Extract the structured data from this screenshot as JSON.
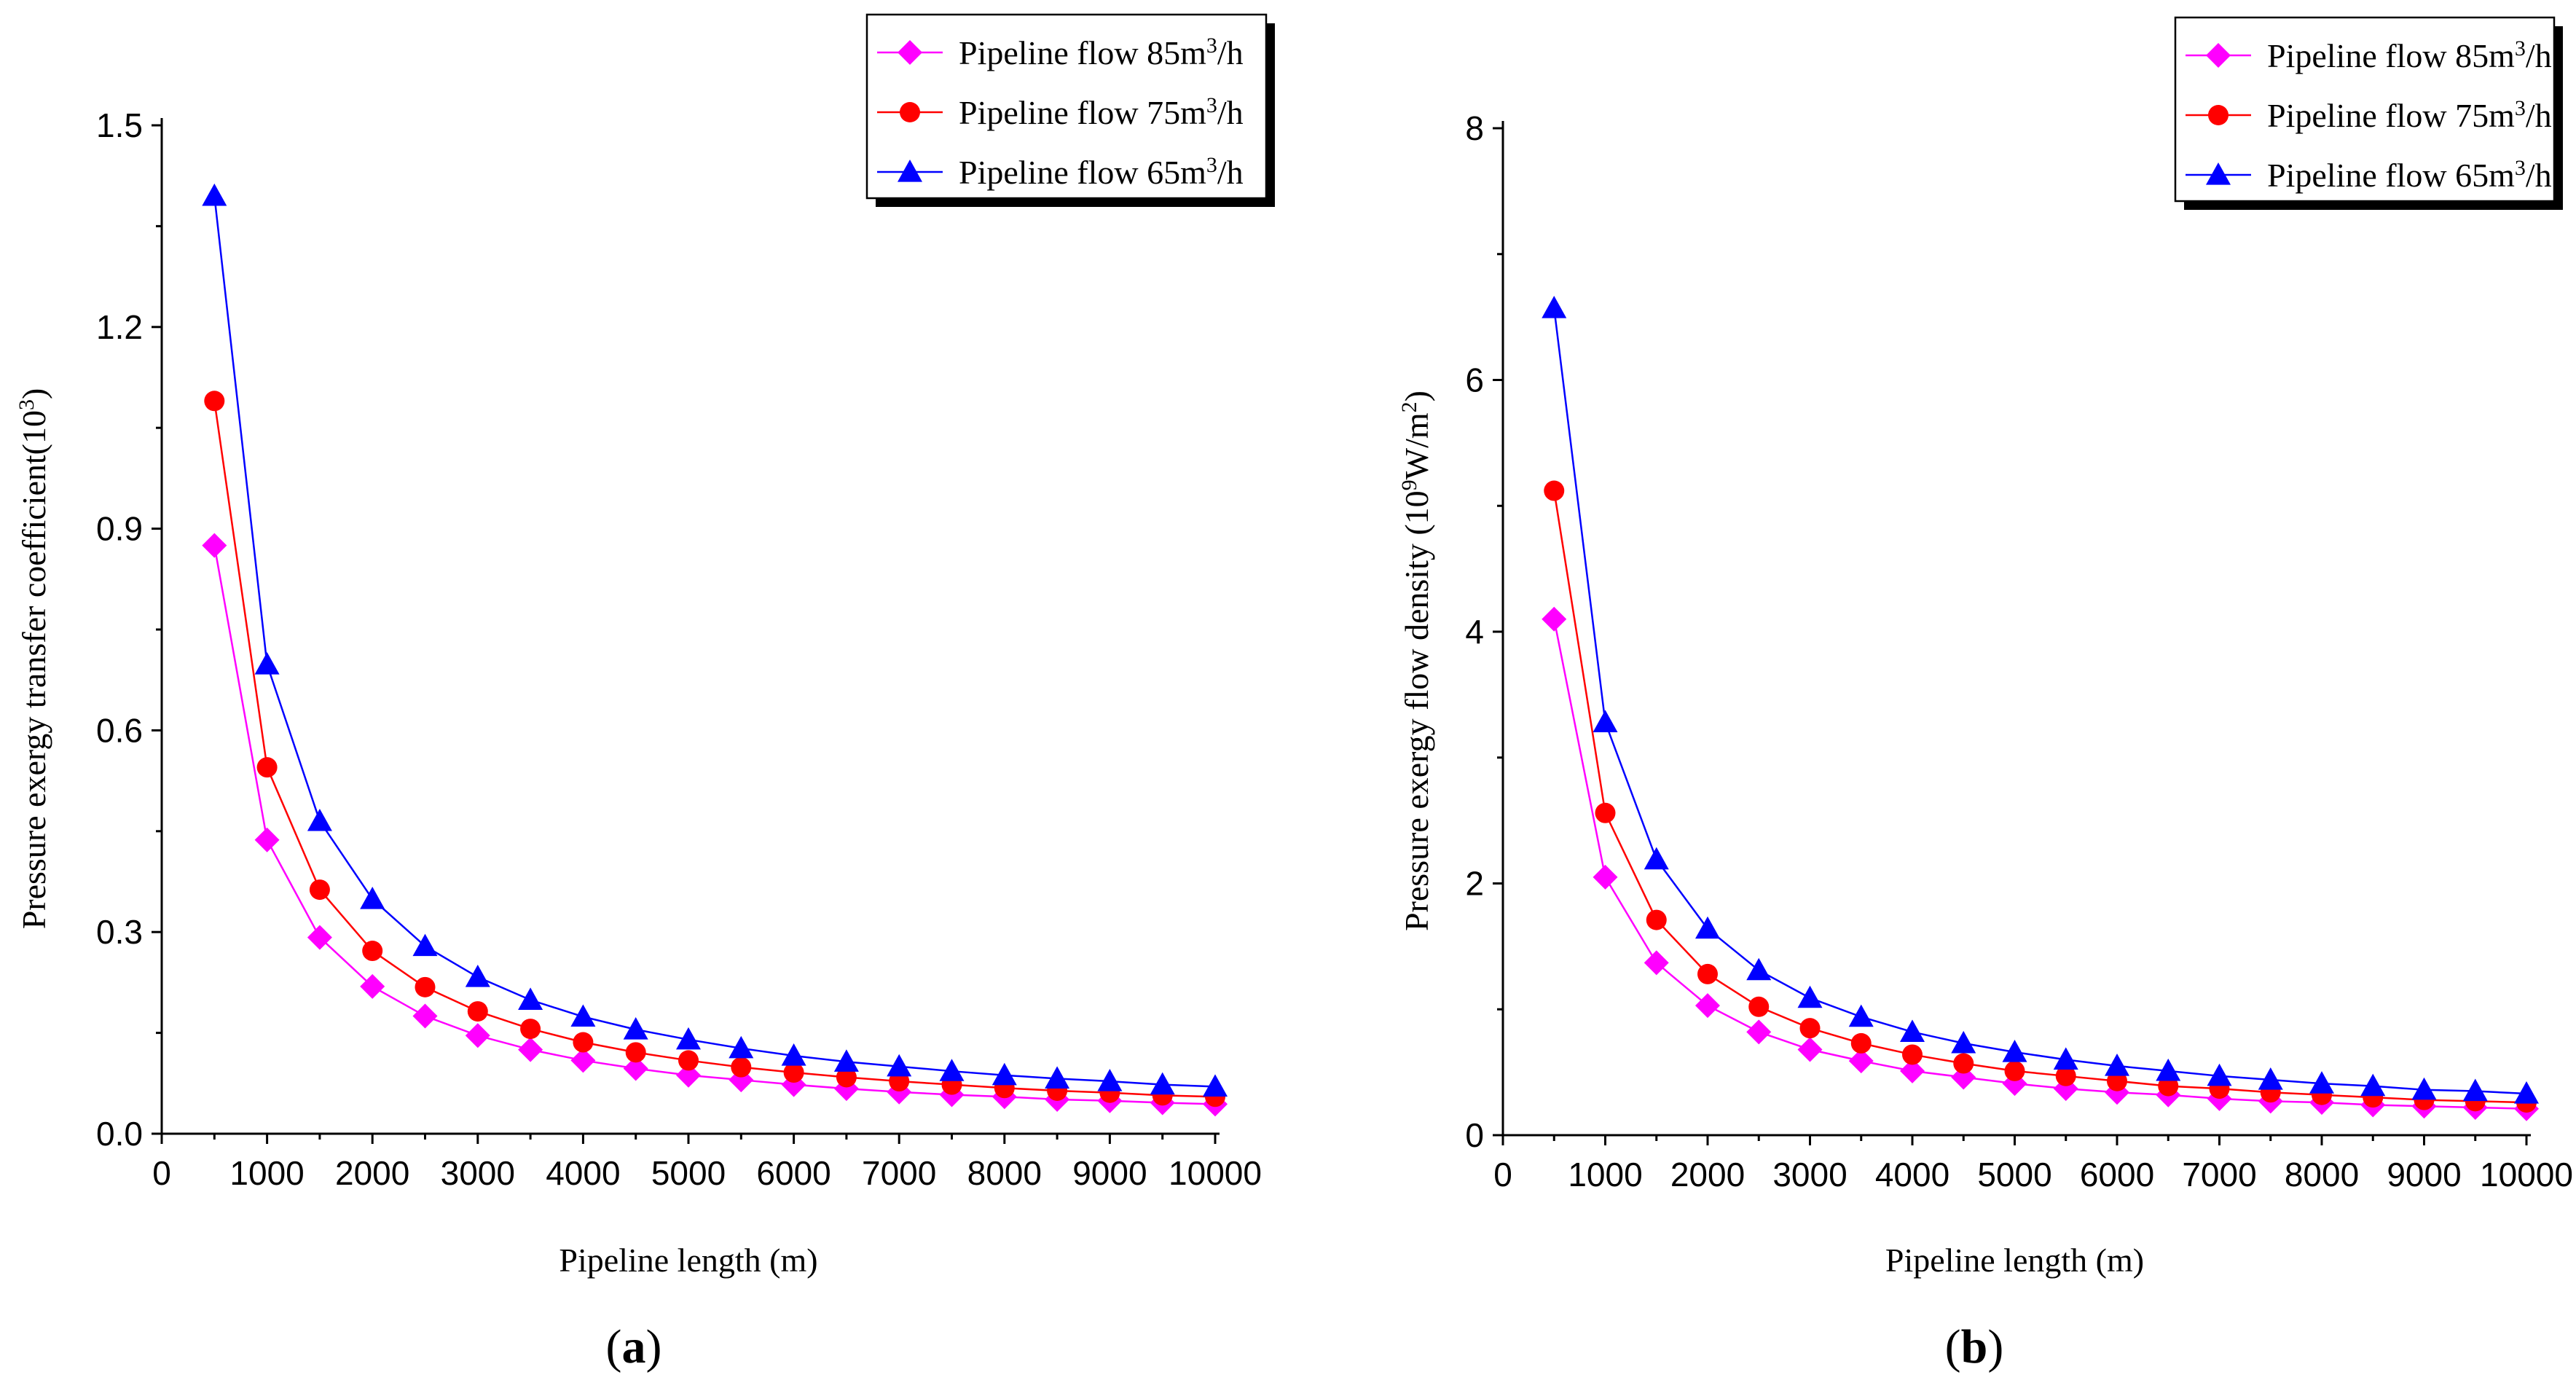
{
  "figure": {
    "panel_a_label": "a",
    "panel_b_label": "b"
  },
  "chart_data": [
    {
      "type": "line",
      "panel": "a",
      "title": "",
      "xlabel": "Pipeline length (m)",
      "ylabel_main": "Pressure exergy transfer coefficient(10",
      "ylabel_sup": "3",
      "ylabel_end": ")",
      "xlim": [
        0,
        10000
      ],
      "ylim": [
        0,
        1.5
      ],
      "xticks": [
        0,
        1000,
        2000,
        3000,
        4000,
        5000,
        6000,
        7000,
        8000,
        9000,
        10000
      ],
      "yticks": [
        0.0,
        0.3,
        0.6,
        0.9,
        1.2,
        1.5
      ],
      "ytick_labels": [
        "0.0",
        "0.3",
        "0.6",
        "0.9",
        "1.2",
        "1.5"
      ],
      "grid": false,
      "legend_position": "top-right",
      "x": [
        500,
        1000,
        1500,
        2000,
        2500,
        3000,
        3500,
        4000,
        4500,
        5000,
        5500,
        6000,
        6500,
        7000,
        7500,
        8000,
        8500,
        9000,
        9500,
        10000
      ],
      "series": [
        {
          "name_prefix": "Pipeline flow 85m",
          "name_sup": "3",
          "name_suffix": "/h",
          "color": "#ff00ff",
          "marker": "diamond",
          "values": [
            0.875,
            0.437,
            0.292,
            0.219,
            0.175,
            0.146,
            0.125,
            0.109,
            0.097,
            0.087,
            0.08,
            0.073,
            0.067,
            0.062,
            0.058,
            0.055,
            0.051,
            0.049,
            0.046,
            0.044
          ]
        },
        {
          "name_prefix": "Pipeline flow 75m",
          "name_sup": "3",
          "name_suffix": "/h",
          "color": "#ff0000",
          "marker": "circle",
          "values": [
            1.09,
            0.545,
            0.363,
            0.272,
            0.218,
            0.182,
            0.156,
            0.136,
            0.121,
            0.109,
            0.099,
            0.091,
            0.084,
            0.078,
            0.073,
            0.068,
            0.064,
            0.061,
            0.057,
            0.055
          ]
        },
        {
          "name_prefix": "Pipeline flow 65m",
          "name_sup": "3",
          "name_suffix": "/h",
          "color": "#0000ff",
          "marker": "triangle",
          "values": [
            1.395,
            0.698,
            0.465,
            0.349,
            0.279,
            0.233,
            0.199,
            0.174,
            0.155,
            0.14,
            0.127,
            0.116,
            0.107,
            0.1,
            0.093,
            0.087,
            0.082,
            0.078,
            0.073,
            0.07
          ]
        }
      ]
    },
    {
      "type": "line",
      "panel": "b",
      "title": "",
      "xlabel": "Pipeline length (m)",
      "ylabel_main": "Pressure exergy flow density (10",
      "ylabel_sup": "9",
      "ylabel_mid": "W/m",
      "ylabel_sup2": "2",
      "ylabel_end": ")",
      "xlim": [
        0,
        10000
      ],
      "ylim": [
        0,
        8
      ],
      "xticks": [
        0,
        1000,
        2000,
        3000,
        4000,
        5000,
        6000,
        7000,
        8000,
        9000,
        10000
      ],
      "yticks": [
        0,
        2,
        4,
        6,
        8
      ],
      "ytick_labels": [
        "0",
        "2",
        "4",
        "6",
        "8"
      ],
      "grid": false,
      "legend_position": "top-right",
      "x": [
        500,
        1000,
        1500,
        2000,
        2500,
        3000,
        3500,
        4000,
        4500,
        5000,
        5500,
        6000,
        6500,
        7000,
        7500,
        8000,
        8500,
        9000,
        9500,
        10000
      ],
      "series": [
        {
          "name_prefix": "Pipeline flow 85m",
          "name_sup": "3",
          "name_suffix": "/h",
          "color": "#ff00ff",
          "marker": "diamond",
          "values": [
            4.1,
            2.05,
            1.37,
            1.03,
            0.82,
            0.68,
            0.59,
            0.51,
            0.46,
            0.41,
            0.37,
            0.34,
            0.32,
            0.29,
            0.27,
            0.26,
            0.24,
            0.23,
            0.22,
            0.21
          ]
        },
        {
          "name_prefix": "Pipeline flow 75m",
          "name_sup": "3",
          "name_suffix": "/h",
          "color": "#ff0000",
          "marker": "circle",
          "values": [
            5.12,
            2.56,
            1.71,
            1.28,
            1.02,
            0.85,
            0.73,
            0.64,
            0.57,
            0.51,
            0.47,
            0.43,
            0.39,
            0.37,
            0.34,
            0.32,
            0.3,
            0.28,
            0.27,
            0.26
          ]
        },
        {
          "name_prefix": "Pipeline flow 65m",
          "name_sup": "3",
          "name_suffix": "/h",
          "color": "#0000ff",
          "marker": "triangle",
          "values": [
            6.57,
            3.28,
            2.19,
            1.64,
            1.31,
            1.09,
            0.94,
            0.82,
            0.73,
            0.66,
            0.6,
            0.55,
            0.51,
            0.47,
            0.44,
            0.41,
            0.39,
            0.36,
            0.35,
            0.33
          ]
        }
      ]
    }
  ]
}
